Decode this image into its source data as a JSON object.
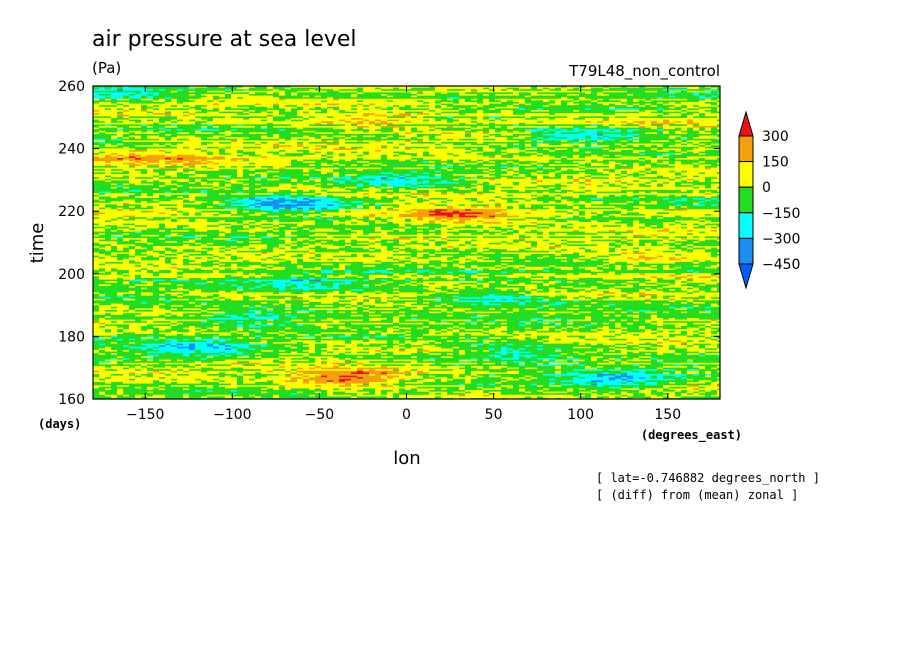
{
  "chart_data": {
    "type": "heatmap",
    "title": "air pressure at sea level",
    "units": "(Pa)",
    "experiment": "T79L48_non_control",
    "xlabel": "lon",
    "xunits": "(degrees_east)",
    "ylabel": "time",
    "yunits": "(days)",
    "xlim": [
      -180,
      180
    ],
    "ylim": [
      160,
      260
    ],
    "xticks": [
      -150,
      -100,
      -50,
      0,
      50,
      100,
      150
    ],
    "yticks": [
      160,
      180,
      200,
      220,
      240,
      260
    ],
    "colorbar": {
      "levels": [
        300,
        150,
        0,
        -150,
        -300,
        -450
      ],
      "colors": [
        "#e8131a",
        "#f5a00a",
        "#ffff00",
        "#22dd22",
        "#00ffff",
        "#1a8ef0",
        "#0060ff"
      ]
    },
    "notes": [
      "[ lat=-0.746882 degrees_north ]",
      "[ (diff) from (mean) zonal ]"
    ],
    "features": [
      {
        "lon": -35,
        "time": 167,
        "value": 350
      },
      {
        "lon": 30,
        "time": 219,
        "value": 320
      },
      {
        "lon": -70,
        "time": 222,
        "value": -420
      },
      {
        "lon": 50,
        "time": 192,
        "value": -200
      },
      {
        "lon": -120,
        "time": 176,
        "value": -250
      },
      {
        "lon": 120,
        "time": 166,
        "value": -300
      },
      {
        "lon": -90,
        "time": 186,
        "value": -200
      },
      {
        "lon": 100,
        "time": 244,
        "value": -250
      },
      {
        "lon": -140,
        "time": 236,
        "value": 150
      },
      {
        "lon": 0,
        "time": 230,
        "value": -200
      },
      {
        "lon": 140,
        "time": 205,
        "value": 150
      },
      {
        "lon": -20,
        "time": 250,
        "value": 150
      },
      {
        "lon": -160,
        "time": 258,
        "value": -200
      },
      {
        "lon": 60,
        "time": 175,
        "value": -200
      },
      {
        "lon": -60,
        "time": 198,
        "value": -150
      }
    ]
  }
}
